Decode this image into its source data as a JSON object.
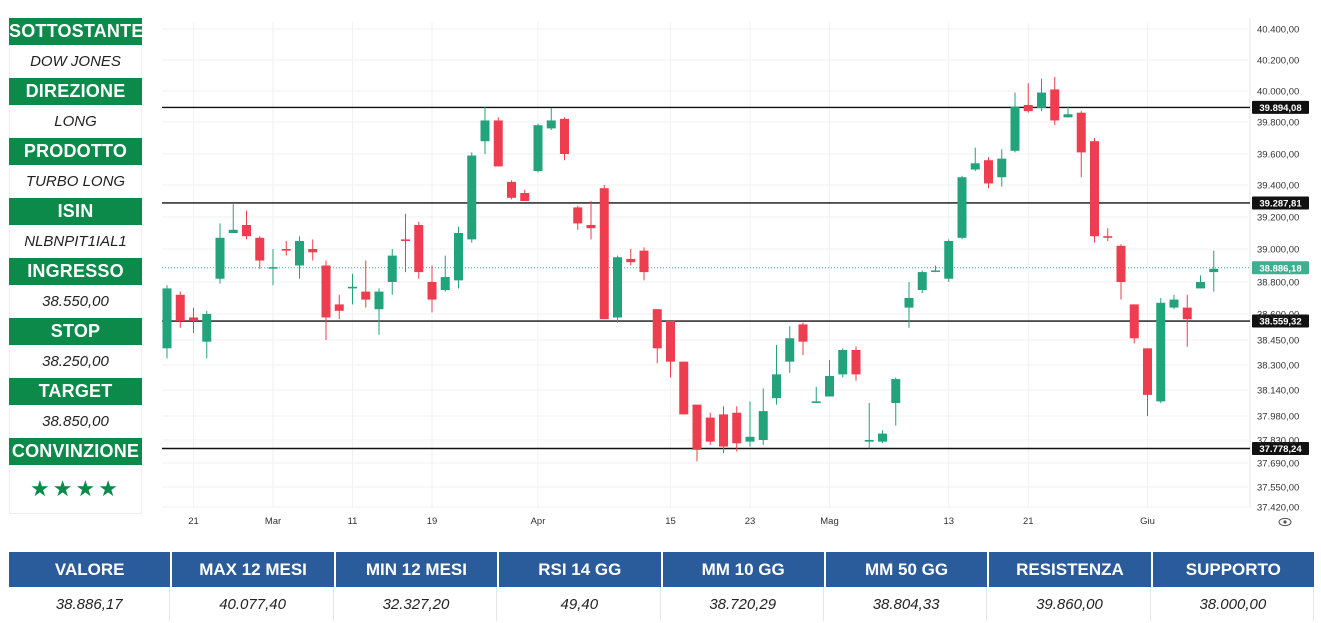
{
  "panel": [
    {
      "label": "SOTTOSTANTE",
      "value": "DOW JONES"
    },
    {
      "label": "DIREZIONE",
      "value": "LONG"
    },
    {
      "label": "PRODOTTO",
      "value": "TURBO LONG"
    },
    {
      "label": "ISIN",
      "value": "NLBNPIT1IAL1"
    },
    {
      "label": "INGRESSO",
      "value": "38.550,00"
    },
    {
      "label": "STOP",
      "value": "38.250,00"
    },
    {
      "label": "TARGET",
      "value": "38.850,00"
    },
    {
      "label": "CONVINZIONE",
      "value": "★★★★"
    }
  ],
  "stats": {
    "headers": [
      "VALORE",
      "MAX 12 MESI",
      "MIN 12 MESI",
      "RSI 14 GG",
      "MM 10 GG",
      "MM 50 GG",
      "RESISTENZA",
      "SUPPORTO"
    ],
    "values": [
      "38.886,17",
      "40.077,40",
      "32.327,20",
      "49,40",
      "38.720,29",
      "38.804,33",
      "39.860,00",
      "38.000,00"
    ]
  },
  "chart_data": {
    "type": "candlestick",
    "y_ticks": [
      {
        "v": 40400,
        "label": "40.400,00"
      },
      {
        "v": 40200,
        "label": "40.200,00"
      },
      {
        "v": 40000,
        "label": "40.000,00"
      },
      {
        "v": 39800,
        "label": "39.800,00"
      },
      {
        "v": 39600,
        "label": "39.600,00"
      },
      {
        "v": 39400,
        "label": "39.400,00"
      },
      {
        "v": 39200,
        "label": "39.200,00"
      },
      {
        "v": 39000,
        "label": "39.000,00"
      },
      {
        "v": 38800,
        "label": "38.800,00"
      },
      {
        "v": 38600,
        "label": "38.600,00"
      },
      {
        "v": 38450,
        "label": "38.450,00"
      },
      {
        "v": 38300,
        "label": "38.300,00"
      },
      {
        "v": 38140,
        "label": "38.140,00"
      },
      {
        "v": 37980,
        "label": "37.980,00"
      },
      {
        "v": 37830,
        "label": "37.830,00"
      },
      {
        "v": 37690,
        "label": "37.690,00"
      },
      {
        "v": 37550,
        "label": "37.550,00"
      },
      {
        "v": 37420,
        "label": "37.420,00"
      }
    ],
    "x_ticks": [
      {
        "i": 2,
        "label": "21"
      },
      {
        "i": 8,
        "label": "Mar"
      },
      {
        "i": 14,
        "label": "11"
      },
      {
        "i": 20,
        "label": "19"
      },
      {
        "i": 28,
        "label": "Apr"
      },
      {
        "i": 38,
        "label": "15"
      },
      {
        "i": 44,
        "label": "23"
      },
      {
        "i": 50,
        "label": "Mag"
      },
      {
        "i": 59,
        "label": "13"
      },
      {
        "i": 65,
        "label": "21"
      },
      {
        "i": 74,
        "label": "Giu"
      }
    ],
    "levels": [
      {
        "v": 39894.08,
        "label": "39.894,08",
        "style": "solid"
      },
      {
        "v": 39287.81,
        "label": "39.287,81",
        "style": "solid"
      },
      {
        "v": 38886.18,
        "label": "38.886,18",
        "style": "dotted"
      },
      {
        "v": 38559.32,
        "label": "38.559,32",
        "style": "solid"
      },
      {
        "v": 37778.24,
        "label": "37.778,24",
        "style": "solid"
      }
    ],
    "colors": {
      "up": "#22a37c",
      "down": "#ee3d4e",
      "last": "#3fae91"
    },
    "candles": [
      [
        38400,
        38760,
        38340,
        38780
      ],
      [
        38720,
        38560,
        38520,
        38740
      ],
      [
        38580,
        38560,
        38490,
        38640
      ],
      [
        38440,
        38600,
        38340,
        38620
      ],
      [
        38820,
        39070,
        38790,
        39160
      ],
      [
        39100,
        39120,
        39100,
        39280
      ],
      [
        39150,
        39080,
        39060,
        39240
      ],
      [
        39070,
        38930,
        38880,
        39080
      ],
      [
        38890,
        38890,
        38780,
        39000
      ],
      [
        39000,
        38990,
        38960,
        39050
      ],
      [
        38900,
        39050,
        38820,
        39080
      ],
      [
        39000,
        38980,
        38930,
        39060
      ],
      [
        38900,
        38580,
        38450,
        38930
      ],
      [
        38660,
        38620,
        38570,
        38720
      ],
      [
        38760,
        38770,
        38660,
        38850
      ],
      [
        38740,
        38690,
        38640,
        38930
      ],
      [
        38630,
        38740,
        38480,
        38760
      ],
      [
        38800,
        38960,
        38720,
        39000
      ],
      [
        39060,
        39050,
        38860,
        39220
      ],
      [
        39150,
        38860,
        38820,
        39170
      ],
      [
        38800,
        38690,
        38610,
        38900
      ],
      [
        38750,
        38830,
        38740,
        38960
      ],
      [
        38810,
        39100,
        38760,
        39140
      ],
      [
        39060,
        39590,
        39040,
        39610
      ],
      [
        39680,
        39810,
        39600,
        39900
      ],
      [
        39810,
        39520,
        39520,
        39830
      ],
      [
        39420,
        39320,
        39310,
        39430
      ],
      [
        39350,
        39300,
        39300,
        39370
      ],
      [
        39490,
        39780,
        39480,
        39790
      ],
      [
        39760,
        39810,
        39750,
        39890
      ],
      [
        39820,
        39600,
        39560,
        39830
      ],
      [
        39260,
        39160,
        39120,
        39270
      ],
      [
        39150,
        39130,
        39060,
        39300
      ],
      [
        39380,
        38570,
        38580,
        39400
      ],
      [
        38580,
        38950,
        38550,
        38960
      ],
      [
        38940,
        38920,
        38900,
        39000
      ],
      [
        38990,
        38860,
        38810,
        39010
      ],
      [
        38630,
        38400,
        38310,
        38630
      ],
      [
        38560,
        38320,
        38220,
        38560
      ],
      [
        38320,
        37990,
        37990,
        38320
      ],
      [
        38050,
        37770,
        37700,
        38050
      ],
      [
        37970,
        37820,
        37800,
        38000
      ],
      [
        37990,
        37790,
        37750,
        38040
      ],
      [
        38000,
        37810,
        37760,
        38040
      ],
      [
        37820,
        37850,
        37790,
        38070
      ],
      [
        37830,
        38010,
        37800,
        38150
      ],
      [
        38090,
        38240,
        38050,
        38420
      ],
      [
        38320,
        38460,
        38250,
        38530
      ],
      [
        38540,
        38440,
        38360,
        38550
      ],
      [
        38060,
        38070,
        38060,
        38160
      ],
      [
        38100,
        38230,
        38100,
        38330
      ],
      [
        38240,
        38390,
        38220,
        38400
      ],
      [
        38390,
        38240,
        38200,
        38410
      ],
      [
        37820,
        37830,
        37780,
        38060
      ],
      [
        37820,
        37870,
        37810,
        37890
      ],
      [
        38060,
        38210,
        37920,
        38220
      ],
      [
        38640,
        38700,
        38520,
        38800
      ],
      [
        38750,
        38860,
        38730,
        38870
      ],
      [
        38870,
        38870,
        38860,
        38900
      ],
      [
        38820,
        39050,
        38800,
        39060
      ],
      [
        39070,
        39450,
        39060,
        39460
      ],
      [
        39500,
        39540,
        39490,
        39640
      ],
      [
        39560,
        39410,
        39380,
        39580
      ],
      [
        39450,
        39570,
        39390,
        39630
      ],
      [
        39620,
        39900,
        39610,
        39990
      ],
      [
        39910,
        39870,
        39860,
        40050
      ],
      [
        39890,
        39990,
        39870,
        40080
      ],
      [
        40010,
        39810,
        39780,
        40090
      ],
      [
        39830,
        39850,
        39830,
        39900
      ],
      [
        39860,
        39610,
        39450,
        39870
      ],
      [
        39680,
        39080,
        39040,
        39700
      ],
      [
        39080,
        39070,
        39050,
        39130
      ],
      [
        39020,
        38800,
        38690,
        39030
      ],
      [
        38660,
        38460,
        38430,
        38660
      ],
      [
        38400,
        38110,
        37980,
        38400
      ],
      [
        38070,
        38670,
        38060,
        38700
      ],
      [
        38640,
        38690,
        38630,
        38720
      ],
      [
        38640,
        38570,
        38410,
        38720
      ],
      [
        38760,
        38800,
        38760,
        38840
      ],
      [
        38860,
        38880,
        38740,
        38990
      ]
    ]
  }
}
